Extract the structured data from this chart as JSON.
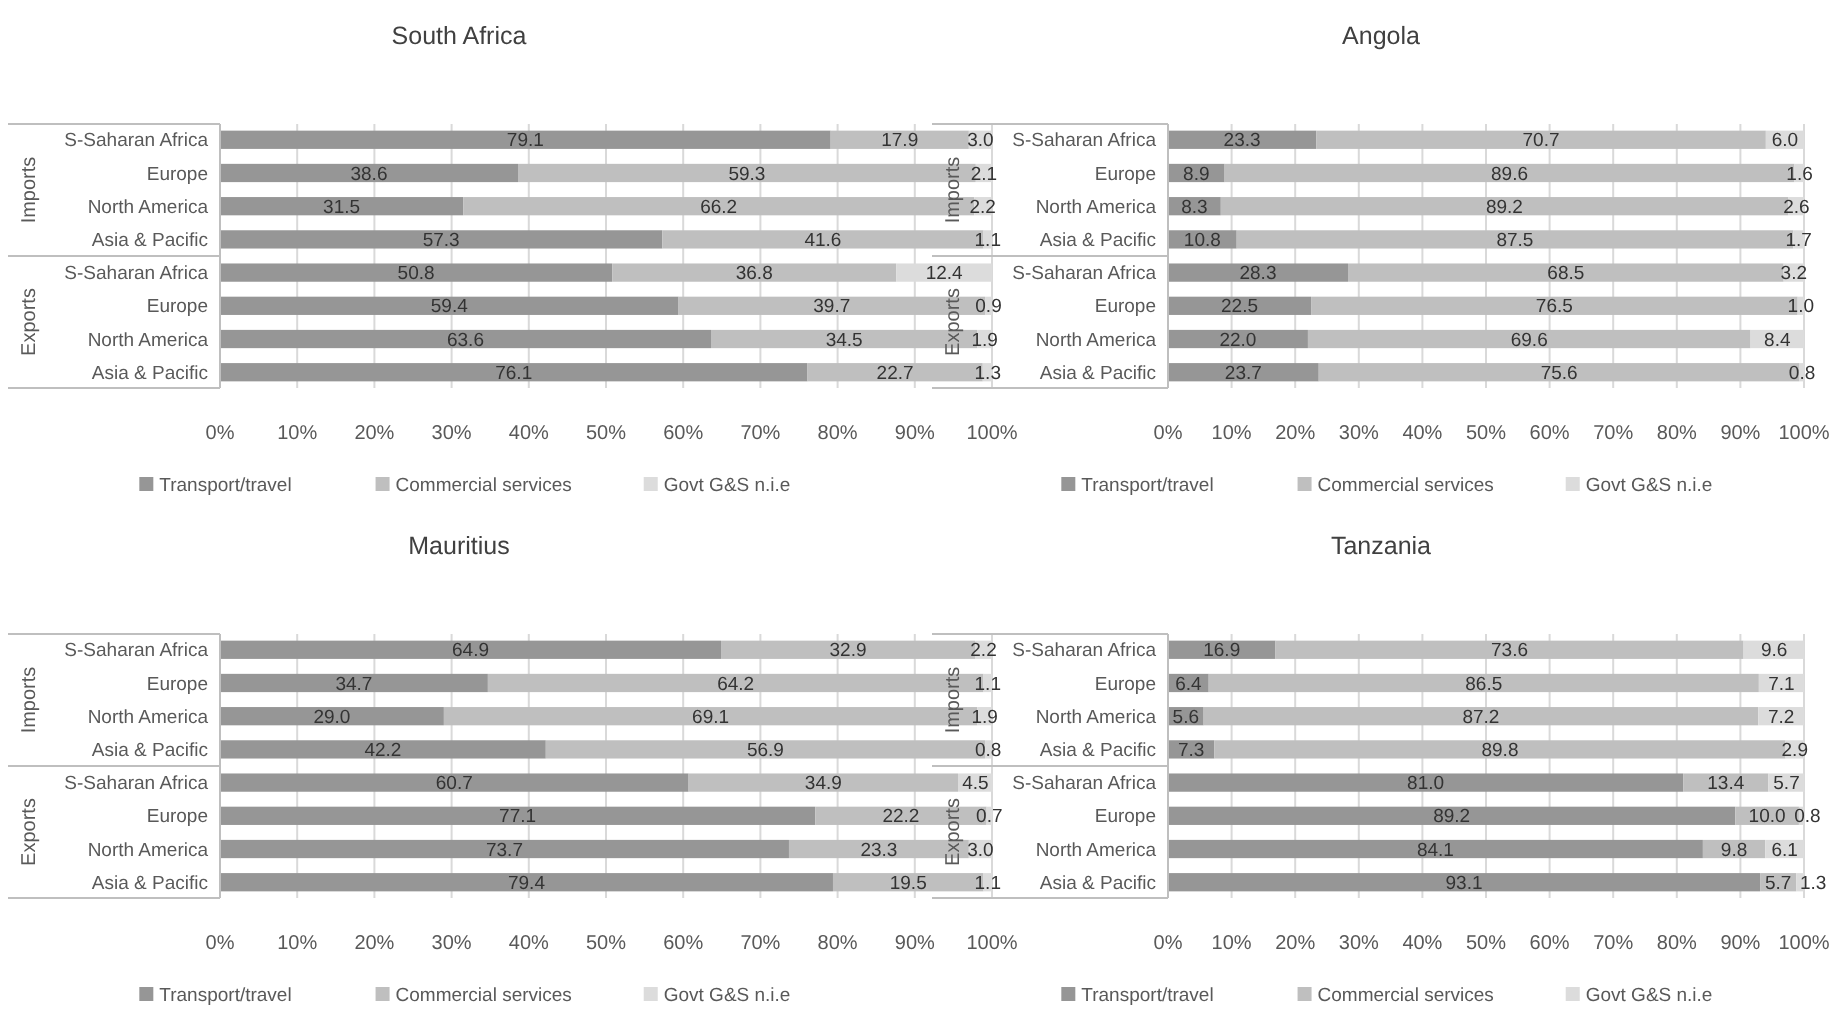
{
  "chart_data": [
    {
      "type": "bar",
      "title": "South Africa",
      "orientation": "horizontal",
      "stacked": true,
      "categories": [
        "S-Saharan Africa",
        "Europe",
        "North America",
        "Asia & Pacific",
        "S-Saharan Africa",
        "Europe",
        "North America",
        "Asia & Pacific"
      ],
      "annotations": [
        "Imports",
        "Exports"
      ],
      "xlim": [
        0,
        100
      ],
      "xticks": [
        {
          "value": 0,
          "label": "0%"
        },
        {
          "value": 10,
          "label": "10%"
        },
        {
          "value": 20,
          "label": "20%"
        },
        {
          "value": 30,
          "label": "30%"
        },
        {
          "value": 40,
          "label": "40%"
        },
        {
          "value": 50,
          "label": "50%"
        },
        {
          "value": 60,
          "label": "60%"
        },
        {
          "value": 70,
          "label": "70%"
        },
        {
          "value": 80,
          "label": "80%"
        },
        {
          "value": 90,
          "label": "90%"
        },
        {
          "value": 100,
          "label": "100%"
        }
      ],
      "grid": "x",
      "legend": "bottom",
      "series": [
        {
          "name": "Transport/travel",
          "color": "#969696",
          "values": [
            79.1,
            38.6,
            31.5,
            57.3,
            50.8,
            59.4,
            63.6,
            76.1
          ],
          "value_labels": [
            "79.1",
            "38.6",
            "31.5",
            "57.3",
            "50.8",
            "59.4",
            "63.6",
            "76.1"
          ]
        },
        {
          "name": "Commercial services",
          "color": "#bfbfbf",
          "values": [
            17.9,
            59.3,
            66.2,
            41.6,
            36.8,
            39.7,
            34.5,
            22.7
          ],
          "value_labels": [
            "17.9",
            "59.3",
            "66.2",
            "41.6",
            "36.8",
            "39.7",
            "34.5",
            "22.7"
          ]
        },
        {
          "name": "Govt G&S n.i.e",
          "color": "#dcdcdc",
          "values": [
            3.0,
            2.1,
            2.2,
            1.1,
            12.4,
            0.9,
            1.9,
            1.3
          ],
          "value_labels": [
            "3.0",
            "2.1",
            "2.2",
            "1.1",
            "12.4",
            "0.9",
            "1.9",
            "1.3"
          ]
        }
      ]
    },
    {
      "type": "bar",
      "title": "Angola",
      "orientation": "horizontal",
      "stacked": true,
      "categories": [
        "S-Saharan Africa",
        "Europe",
        "North America",
        "Asia & Pacific",
        "S-Saharan Africa",
        "Europe",
        "North America",
        "Asia & Pacific"
      ],
      "annotations": [
        "Imports",
        "Exports"
      ],
      "xlim": [
        0,
        100
      ],
      "xticks": [
        {
          "value": 0,
          "label": "0%"
        },
        {
          "value": 10,
          "label": "10%"
        },
        {
          "value": 20,
          "label": "20%"
        },
        {
          "value": 30,
          "label": "30%"
        },
        {
          "value": 40,
          "label": "40%"
        },
        {
          "value": 50,
          "label": "50%"
        },
        {
          "value": 60,
          "label": "60%"
        },
        {
          "value": 70,
          "label": "70%"
        },
        {
          "value": 80,
          "label": "80%"
        },
        {
          "value": 90,
          "label": "90%"
        },
        {
          "value": 100,
          "label": "100%"
        }
      ],
      "grid": "x",
      "legend": "bottom",
      "series": [
        {
          "name": "Transport/travel",
          "color": "#969696",
          "values": [
            23.3,
            8.9,
            8.3,
            10.8,
            28.3,
            22.5,
            22.0,
            23.7
          ],
          "value_labels": [
            "23.3",
            "8.9",
            "8.3",
            "10.8",
            "28.3",
            "22.5",
            "22.0",
            "23.7"
          ]
        },
        {
          "name": "Commercial services",
          "color": "#bfbfbf",
          "values": [
            70.7,
            89.6,
            89.2,
            87.5,
            68.5,
            76.5,
            69.6,
            75.6
          ],
          "value_labels": [
            "70.7",
            "89.6",
            "89.2",
            "87.5",
            "68.5",
            "76.5",
            "69.6",
            "75.6"
          ]
        },
        {
          "name": "Govt G&S n.i.e",
          "color": "#dcdcdc",
          "values": [
            6.0,
            1.6,
            2.6,
            1.7,
            3.2,
            1.0,
            8.4,
            0.8
          ],
          "value_labels": [
            "6.0",
            "1.6",
            "2.6",
            "1.7",
            "3.2",
            "1.0",
            "8.4",
            "0.8"
          ]
        }
      ]
    },
    {
      "type": "bar",
      "title": "Mauritius",
      "orientation": "horizontal",
      "stacked": true,
      "categories": [
        "S-Saharan Africa",
        "Europe",
        "North America",
        "Asia & Pacific",
        "S-Saharan Africa",
        "Europe",
        "North America",
        "Asia & Pacific"
      ],
      "annotations": [
        "Imports",
        "Exports"
      ],
      "xlim": [
        0,
        100
      ],
      "xticks": [
        {
          "value": 0,
          "label": "0%"
        },
        {
          "value": 10,
          "label": "10%"
        },
        {
          "value": 20,
          "label": "20%"
        },
        {
          "value": 30,
          "label": "30%"
        },
        {
          "value": 40,
          "label": "40%"
        },
        {
          "value": 50,
          "label": "50%"
        },
        {
          "value": 60,
          "label": "60%"
        },
        {
          "value": 70,
          "label": "70%"
        },
        {
          "value": 80,
          "label": "80%"
        },
        {
          "value": 90,
          "label": "90%"
        },
        {
          "value": 100,
          "label": "100%"
        }
      ],
      "grid": "x",
      "legend": "bottom",
      "series": [
        {
          "name": "Transport/travel",
          "color": "#969696",
          "values": [
            64.9,
            34.7,
            29.0,
            42.2,
            60.7,
            77.1,
            73.7,
            79.4
          ],
          "value_labels": [
            "64.9",
            "34.7",
            "29.0",
            "42.2",
            "60.7",
            "77.1",
            "73.7",
            "79.4"
          ]
        },
        {
          "name": "Commercial services",
          "color": "#bfbfbf",
          "values": [
            32.9,
            64.2,
            69.1,
            56.9,
            34.9,
            22.2,
            23.3,
            19.5
          ],
          "value_labels": [
            "32.9",
            "64.2",
            "69.1",
            "56.9",
            "34.9",
            "22.2",
            "23.3",
            "19.5"
          ]
        },
        {
          "name": "Govt G&S n.i.e",
          "color": "#dcdcdc",
          "values": [
            2.2,
            1.1,
            1.9,
            0.8,
            4.5,
            0.7,
            3.0,
            1.1
          ],
          "value_labels": [
            "2.2",
            "1.1",
            "1.9",
            "0.8",
            "4.5",
            "0.7",
            "3.0",
            "1.1"
          ]
        }
      ]
    },
    {
      "type": "bar",
      "title": "Tanzania",
      "orientation": "horizontal",
      "stacked": true,
      "categories": [
        "S-Saharan Africa",
        "Europe",
        "North America",
        "Asia & Pacific",
        "S-Saharan Africa",
        "Europe",
        "North America",
        "Asia & Pacific"
      ],
      "annotations": [
        "Imports",
        "Exports"
      ],
      "xlim": [
        0,
        100
      ],
      "xticks": [
        {
          "value": 0,
          "label": "0%"
        },
        {
          "value": 10,
          "label": "10%"
        },
        {
          "value": 20,
          "label": "20%"
        },
        {
          "value": 30,
          "label": "30%"
        },
        {
          "value": 40,
          "label": "40%"
        },
        {
          "value": 50,
          "label": "50%"
        },
        {
          "value": 60,
          "label": "60%"
        },
        {
          "value": 70,
          "label": "70%"
        },
        {
          "value": 80,
          "label": "80%"
        },
        {
          "value": 90,
          "label": "90%"
        },
        {
          "value": 100,
          "label": "100%"
        }
      ],
      "grid": "x",
      "legend": "bottom",
      "series": [
        {
          "name": "Transport/travel",
          "color": "#969696",
          "values": [
            16.9,
            6.4,
            5.6,
            7.3,
            81.0,
            89.2,
            84.1,
            93.1
          ],
          "value_labels": [
            "16.9",
            "6.4",
            "5.6",
            "7.3",
            "81.0",
            "89.2",
            "84.1",
            "93.1"
          ]
        },
        {
          "name": "Commercial services",
          "color": "#bfbfbf",
          "values": [
            73.6,
            86.5,
            87.2,
            89.8,
            13.4,
            10.0,
            9.8,
            5.7
          ],
          "value_labels": [
            "73.6",
            "86.5",
            "87.2",
            "89.8",
            "13.4",
            "10.0",
            "9.8",
            "5.7"
          ]
        },
        {
          "name": "Govt G&S n.i.e",
          "color": "#dcdcdc",
          "values": [
            9.6,
            7.1,
            7.2,
            2.9,
            5.7,
            0.8,
            6.1,
            1.3
          ],
          "value_labels": [
            "9.6",
            "7.1",
            "7.2",
            "2.9",
            "5.7",
            "0.8",
            "6.1",
            "1.3"
          ]
        }
      ]
    }
  ]
}
